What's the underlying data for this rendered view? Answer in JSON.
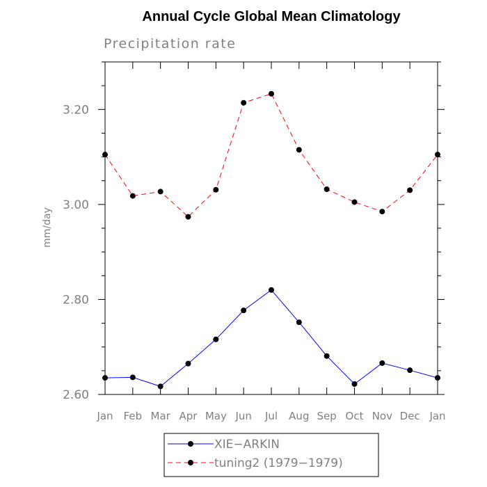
{
  "chart_data": {
    "type": "line",
    "title": "Annual Cycle Global Mean Climatology",
    "subtitle": "Precipitation rate",
    "ylabel": "mm/day",
    "xlabel": "",
    "categories": [
      "Jan",
      "Feb",
      "Mar",
      "Apr",
      "May",
      "Jun",
      "Jul",
      "Aug",
      "Sep",
      "Oct",
      "Nov",
      "Dec",
      "Jan"
    ],
    "ylim": [
      2.6,
      3.3
    ],
    "yticks": [
      "2.60",
      "2.80",
      "3.00",
      "3.20"
    ],
    "grid": false,
    "legend_position": "bottom-center",
    "series": [
      {
        "name": "XIE−ARKIN",
        "color": "#0000ff",
        "dash": "solid",
        "marker": "filled-circle",
        "values": [
          2.635,
          2.636,
          2.617,
          2.665,
          2.716,
          2.777,
          2.82,
          2.752,
          2.681,
          2.622,
          2.666,
          2.651,
          2.635
        ]
      },
      {
        "name": "tuning2 (1979−1979)",
        "color": "#ff0000",
        "dash": "dashed",
        "marker": "filled-circle",
        "values": [
          3.105,
          3.018,
          3.027,
          2.974,
          3.031,
          3.214,
          3.233,
          3.115,
          3.032,
          3.005,
          2.985,
          3.03,
          3.105
        ]
      }
    ]
  }
}
